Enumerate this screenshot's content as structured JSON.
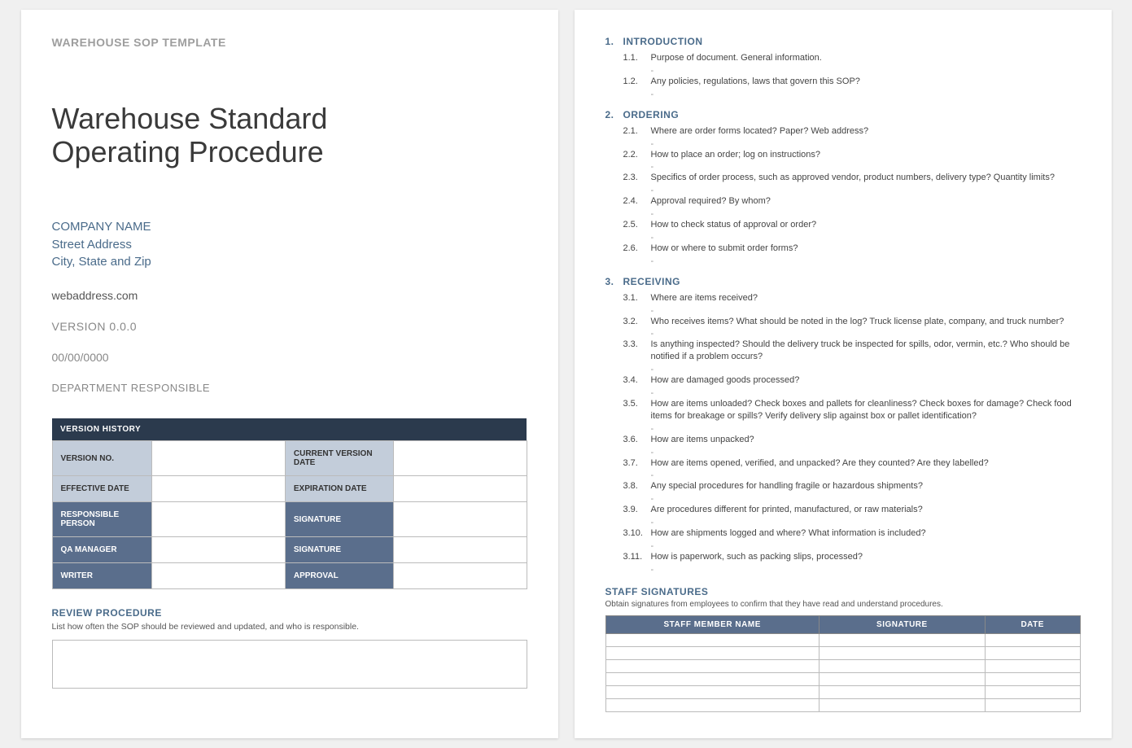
{
  "page1": {
    "header_label": "WAREHOUSE SOP TEMPLATE",
    "title_line1": "Warehouse Standard",
    "title_line2": "Operating Procedure",
    "company_name": "COMPANY NAME",
    "street": "Street Address",
    "city": "City, State and Zip",
    "web": "webaddress.com",
    "version": "VERSION 0.0.0",
    "date": "00/00/0000",
    "dept": "DEPARTMENT RESPONSIBLE",
    "vh": {
      "header": "VERSION HISTORY",
      "rows": [
        {
          "l1": "VERSION NO.",
          "l2": "CURRENT VERSION DATE",
          "style": "light"
        },
        {
          "l1": "EFFECTIVE DATE",
          "l2": "EXPIRATION DATE",
          "style": "light"
        },
        {
          "l1": "RESPONSIBLE PERSON",
          "l2": "SIGNATURE",
          "style": "dark"
        },
        {
          "l1": "QA MANAGER",
          "l2": "SIGNATURE",
          "style": "dark"
        },
        {
          "l1": "WRITER",
          "l2": "APPROVAL",
          "style": "dark"
        }
      ]
    },
    "review": {
      "label": "REVIEW PROCEDURE",
      "desc": "List how often the SOP should be reviewed and updated, and who is responsible."
    }
  },
  "page2": {
    "sections": [
      {
        "num": "1.",
        "title": "INTRODUCTION",
        "items": [
          {
            "num": "1.1.",
            "text": "Purpose of document. General information."
          },
          {
            "num": "1.2.",
            "text": "Any policies, regulations, laws that govern this SOP?"
          }
        ]
      },
      {
        "num": "2.",
        "title": "ORDERING",
        "items": [
          {
            "num": "2.1.",
            "text": "Where are order forms located? Paper? Web address?"
          },
          {
            "num": "2.2.",
            "text": "How to place an order; log on instructions?"
          },
          {
            "num": "2.3.",
            "text": "Specifics of order process, such as approved vendor, product numbers, delivery type? Quantity limits?"
          },
          {
            "num": "2.4.",
            "text": "Approval required? By whom?"
          },
          {
            "num": "2.5.",
            "text": "How to check status of approval or order?"
          },
          {
            "num": "2.6.",
            "text": "How or where to submit order forms?"
          }
        ]
      },
      {
        "num": "3.",
        "title": "RECEIVING",
        "items": [
          {
            "num": "3.1.",
            "text": "Where are items received?"
          },
          {
            "num": "3.2.",
            "text": "Who receives items? What should be noted in the log? Truck license plate, company, and truck number?"
          },
          {
            "num": "3.3.",
            "text": "Is anything inspected? Should the delivery truck be inspected for spills, odor, vermin, etc.? Who should be notified if a problem occurs?"
          },
          {
            "num": "3.4.",
            "text": "How are damaged goods processed?"
          },
          {
            "num": "3.5.",
            "text": "How are items unloaded? Check boxes and pallets for cleanliness? Check boxes for damage? Check food items for breakage or spills? Verify delivery slip against box or pallet identification?"
          },
          {
            "num": "3.6.",
            "text": "How are items unpacked?"
          },
          {
            "num": "3.7.",
            "text": "How are items opened, verified, and unpacked? Are they counted? Are they labelled?"
          },
          {
            "num": "3.8.",
            "text": "Any special procedures for handling fragile or hazardous shipments?"
          },
          {
            "num": "3.9.",
            "text": "Are procedures different for printed, manufactured, or raw materials?"
          },
          {
            "num": "3.10.",
            "text": "How are shipments logged and where? What information is included?"
          },
          {
            "num": "3.11.",
            "text": "How is paperwork, such as packing slips, processed?"
          }
        ]
      }
    ],
    "signatures": {
      "label": "STAFF SIGNATURES",
      "desc": "Obtain signatures from employees to confirm that they have read and understand procedures.",
      "headers": {
        "name": "STAFF MEMBER NAME",
        "sig": "SIGNATURE",
        "date": "DATE"
      },
      "row_count": 6
    }
  },
  "colors": {
    "page_bg": "#ffffff",
    "body_bg": "#f0f0f0",
    "header_gray": "#9e9e9e",
    "accent_blue": "#4a6b8a",
    "dark_header": "#2b3a4d",
    "mid_blue": "#5a6e8c",
    "light_blue": "#c3cdda",
    "border_gray": "#bbbbbb"
  },
  "typography": {
    "font_family": "Century Gothic",
    "title_size_pt": 28,
    "body_size_pt": 11,
    "table_size_pt": 9
  }
}
